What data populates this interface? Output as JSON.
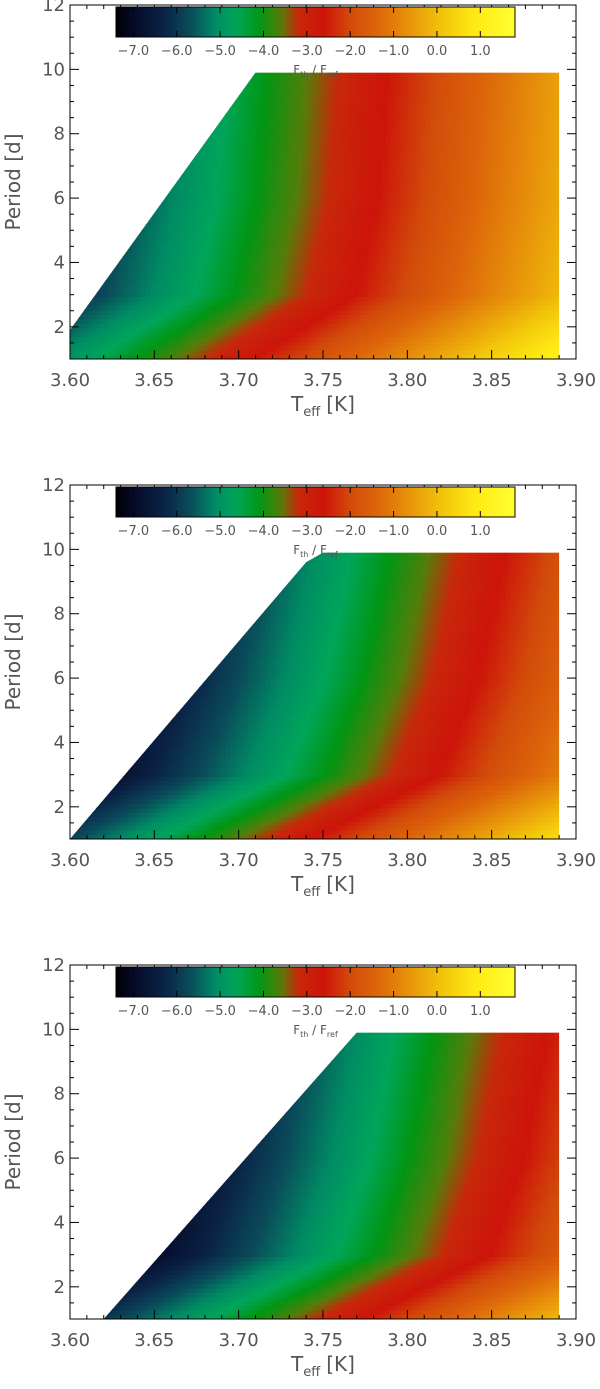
{
  "chart_data": [
    {
      "type": "heatmap",
      "title": "",
      "xlabel": {
        "main": "T",
        "sub": "eff",
        "unit": "[K]"
      },
      "ylabel": "Period [d]",
      "xlim": [
        3.6,
        3.9
      ],
      "ylim": [
        1,
        12
      ],
      "x_ticks": [
        "3.60",
        "3.65",
        "3.70",
        "3.75",
        "3.80",
        "3.85",
        "3.90"
      ],
      "y_ticks": [
        "2",
        "4",
        "6",
        "8",
        "10",
        "12"
      ],
      "data_region": {
        "x_range": [
          3.6,
          3.89
        ],
        "y_range": [
          1,
          9.9
        ]
      },
      "boundary_left_edge": [
        [
          3.6,
          1.0
        ],
        [
          3.6,
          1.9
        ],
        [
          3.71,
          9.9
        ]
      ],
      "colorbar": {
        "label_main": "F",
        "label_sub1": "th",
        "label_sep": " / ",
        "label_main2": "F",
        "label_sub2": "ref",
        "range": [
          -7.4,
          1.8
        ],
        "tick_values": [
          -7,
          -6,
          -5,
          -4,
          -3,
          -2,
          -1,
          0,
          1
        ],
        "tick_labels": [
          "−7.0",
          "−6.0",
          "−5.0",
          "−4.0",
          "−3.0",
          "−2.0",
          "−1.0",
          "0.0",
          "1.0"
        ]
      },
      "field": {
        "x_at_minus3": [
          [
            1,
            3.69
          ],
          [
            3,
            3.755
          ],
          [
            6,
            3.775
          ],
          [
            9.9,
            3.79
          ]
        ],
        "slope": 21.0,
        "floor": -7.4
      }
    },
    {
      "type": "heatmap",
      "title": "",
      "xlabel": {
        "main": "T",
        "sub": "eff",
        "unit": "[K]"
      },
      "ylabel": "Period [d]",
      "xlim": [
        3.6,
        3.9
      ],
      "ylim": [
        1,
        12
      ],
      "x_ticks": [
        "3.60",
        "3.65",
        "3.70",
        "3.75",
        "3.80",
        "3.85",
        "3.90"
      ],
      "y_ticks": [
        "2",
        "4",
        "6",
        "8",
        "10",
        "12"
      ],
      "data_region": {
        "x_range": [
          3.6,
          3.89
        ],
        "y_range": [
          1,
          9.9
        ]
      },
      "boundary_left_edge": [
        [
          3.6,
          1.0
        ],
        [
          3.74,
          9.6
        ],
        [
          3.75,
          9.9
        ]
      ],
      "colorbar": {
        "label_main": "F",
        "label_sub1": "th",
        "label_sep": " / ",
        "label_main2": "F",
        "label_sub2": "ref",
        "range": [
          -7.4,
          1.8
        ],
        "tick_values": [
          -7,
          -6,
          -5,
          -4,
          -3,
          -2,
          -1,
          0,
          1
        ],
        "tick_labels": [
          "−7.0",
          "−6.0",
          "−5.0",
          "−4.0",
          "−3.0",
          "−2.0",
          "−1.0",
          "0.0",
          "1.0"
        ]
      },
      "field": {
        "x_at_minus3": [
          [
            1,
            3.725
          ],
          [
            3,
            3.805
          ],
          [
            6,
            3.835
          ],
          [
            9.9,
            3.86
          ]
        ],
        "slope": 22.0,
        "floor": -7.4
      }
    },
    {
      "type": "heatmap",
      "title": "",
      "xlabel": {
        "main": "T",
        "sub": "eff",
        "unit": "[K]"
      },
      "ylabel": "Period [d]",
      "xlim": [
        3.6,
        3.9
      ],
      "ylim": [
        1,
        12
      ],
      "x_ticks": [
        "3.60",
        "3.65",
        "3.70",
        "3.75",
        "3.80",
        "3.85",
        "3.90"
      ],
      "y_ticks": [
        "2",
        "4",
        "6",
        "8",
        "10",
        "12"
      ],
      "data_region": {
        "x_range": [
          3.62,
          3.89
        ],
        "y_range": [
          1,
          9.9
        ]
      },
      "boundary_left_edge": [
        [
          3.62,
          1.0
        ],
        [
          3.77,
          9.9
        ]
      ],
      "colorbar": {
        "label_main": "F",
        "label_sub1": "th",
        "label_sep": " / ",
        "label_main2": "F",
        "label_sub2": "ref",
        "range": [
          -7.4,
          1.8
        ],
        "tick_values": [
          -7,
          -6,
          -5,
          -4,
          -3,
          -2,
          -1,
          0,
          1
        ],
        "tick_labels": [
          "−7.0",
          "−6.0",
          "−5.0",
          "−4.0",
          "−3.0",
          "−2.0",
          "−1.0",
          "0.0",
          "1.0"
        ]
      },
      "field": {
        "x_at_minus3": [
          [
            1,
            3.755
          ],
          [
            3,
            3.835
          ],
          [
            6,
            3.862
          ],
          [
            9.9,
            3.885
          ]
        ],
        "slope": 22.0,
        "floor": -7.4
      }
    }
  ]
}
